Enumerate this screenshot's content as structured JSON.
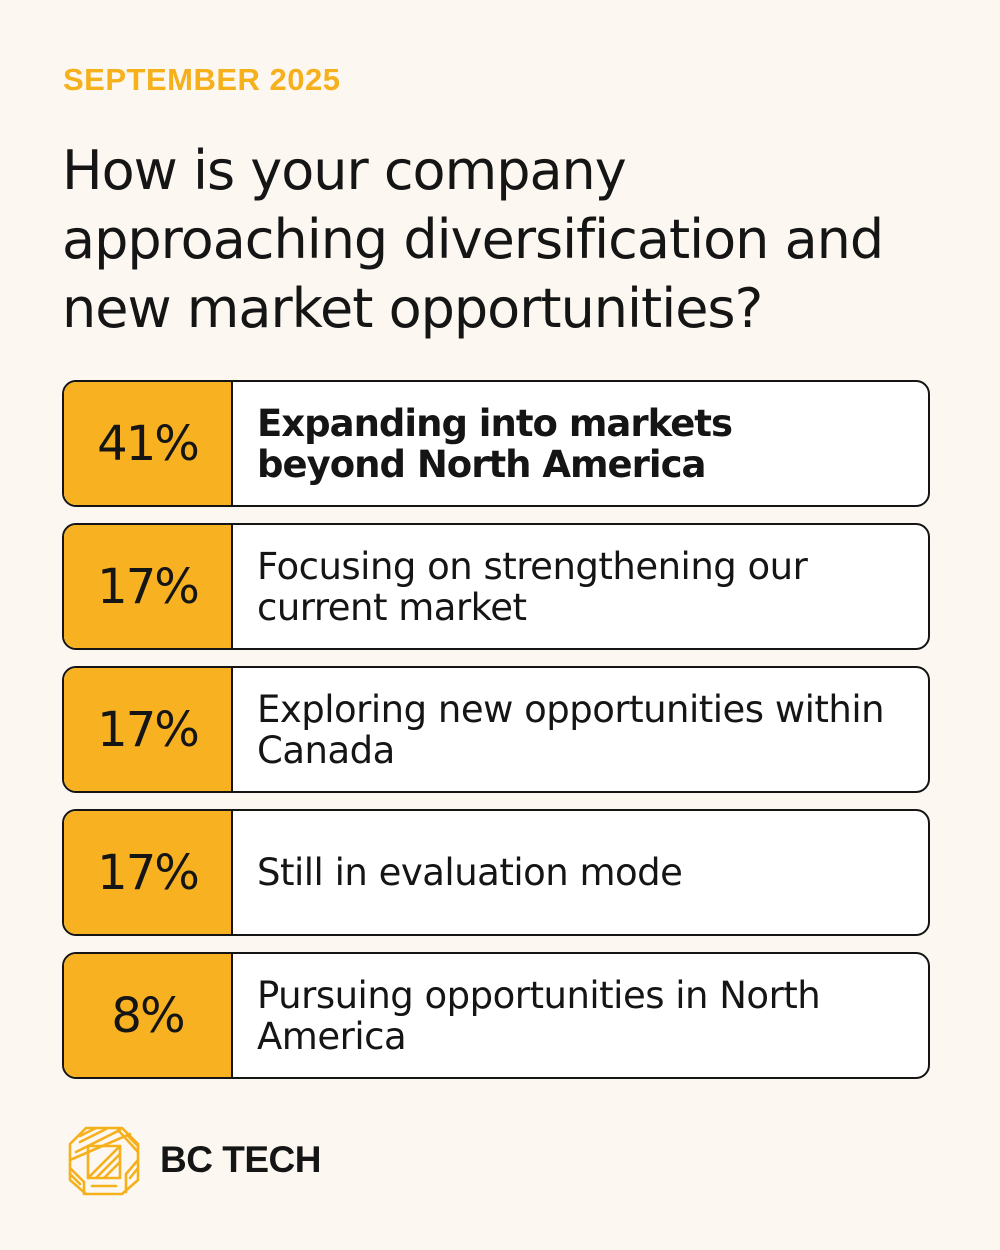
{
  "header": {
    "date": "SEPTEMBER 2025",
    "question": "How is your company approaching diversification and new market opportunities?"
  },
  "chart_data": {
    "type": "table",
    "title": "How is your company approaching diversification and new market opportunities?",
    "subtitle": "SEPTEMBER 2025",
    "rows": [
      {
        "value": 41,
        "value_label": "41%",
        "label": "Expanding into markets beyond North America",
        "highlight": true
      },
      {
        "value": 17,
        "value_label": "17%",
        "label": "Focusing on strengthening our current market",
        "highlight": false
      },
      {
        "value": 17,
        "value_label": "17%",
        "label": "Exploring new opportunities within Canada",
        "highlight": false
      },
      {
        "value": 17,
        "value_label": "17%",
        "label": "Still in evaluation mode",
        "highlight": false
      },
      {
        "value": 8,
        "value_label": "8%",
        "label": "Pursuing opportunities in North America",
        "highlight": false
      }
    ]
  },
  "brand": {
    "name": "BC TECH",
    "logo_icon": "bc-tech-logo-icon",
    "accent_color": "#f8b221",
    "background_color": "#fcf8f1"
  }
}
